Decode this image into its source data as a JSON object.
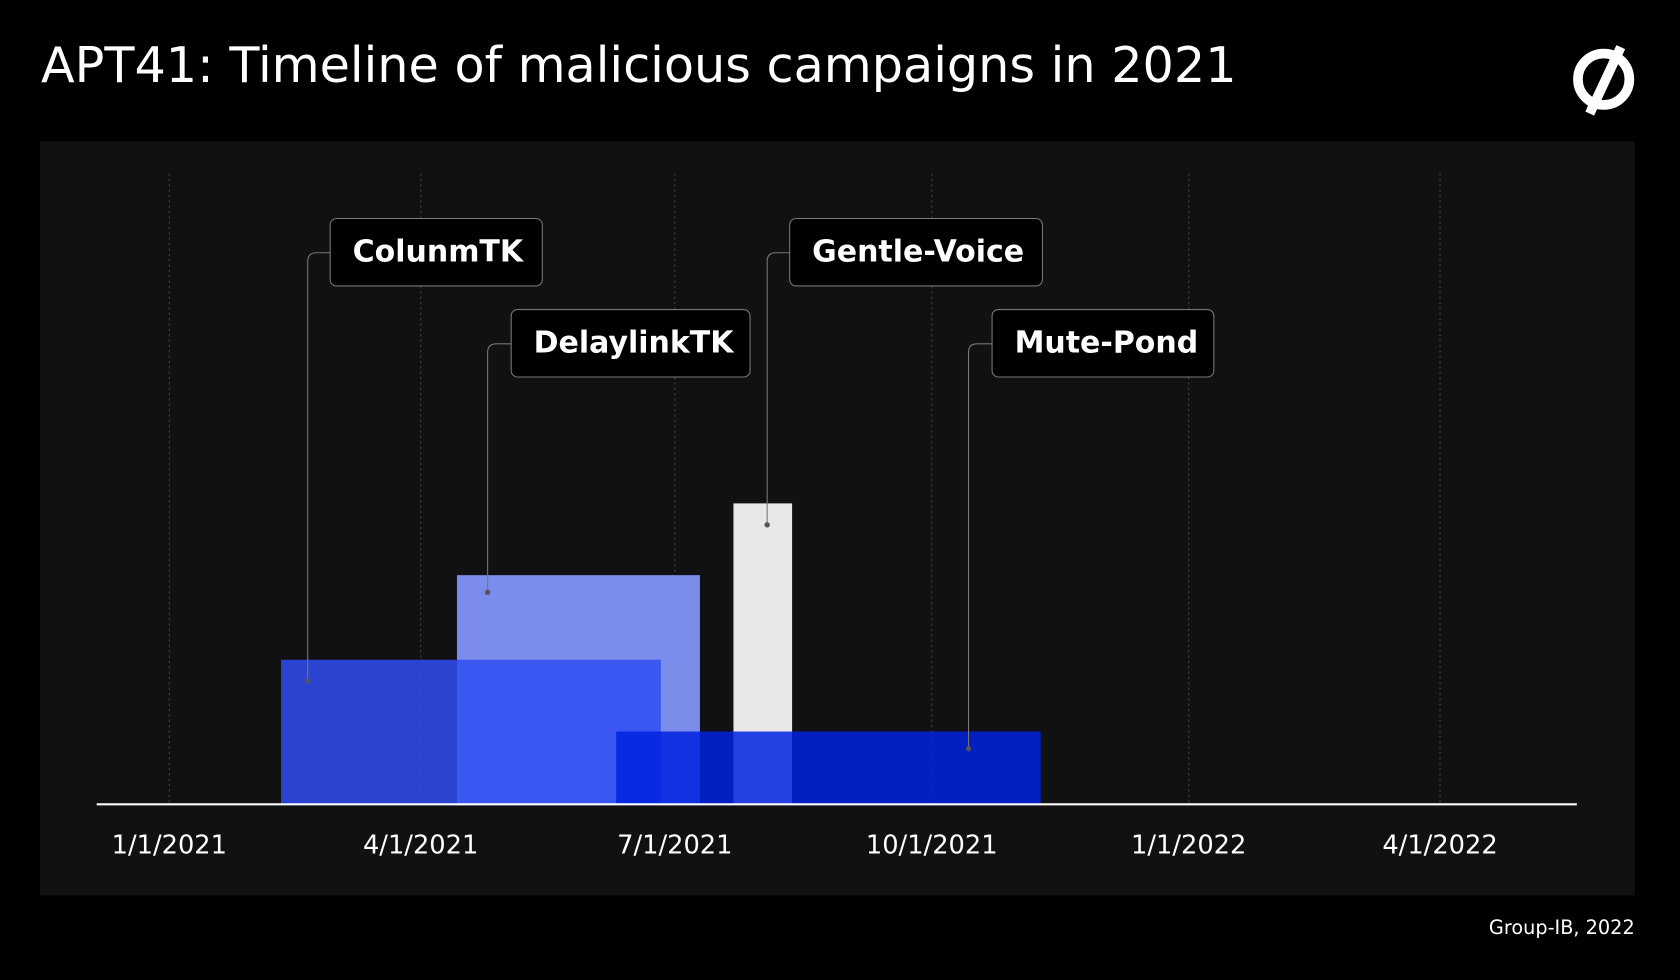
{
  "chart_data": {
    "type": "gantt",
    "title": "APT41: Timeline of malicious campaigns in 2021",
    "source": "Group-IB, 2022",
    "xlim": [
      "2020-12-06",
      "2022-05-20"
    ],
    "xticks": [
      {
        "value": "2021-01-01",
        "label": "1/1/2021"
      },
      {
        "value": "2021-04-01",
        "label": "4/1/2021"
      },
      {
        "value": "2021-07-01",
        "label": "7/1/2021"
      },
      {
        "value": "2021-10-01",
        "label": "10/1/2021"
      },
      {
        "value": "2022-01-01",
        "label": "1/1/2022"
      },
      {
        "value": "2022-04-01",
        "label": "4/1/2022"
      }
    ],
    "grid": true,
    "series": [
      {
        "name": "DelaylinkTK",
        "color": "#7b8ceb",
        "start": "2021-04-14",
        "end": "2021-07-10"
      },
      {
        "name": "ColunmTK",
        "color": "#2f4df2",
        "start": "2021-02-10",
        "end": "2021-06-26"
      },
      {
        "name": "Gentle-Voice",
        "color": "#e8e8e8",
        "start": "2021-07-22",
        "end": "2021-08-12"
      },
      {
        "name": "Mute-Pond",
        "color": "#0022e0",
        "start": "2021-06-10",
        "end": "2021-11-09"
      }
    ]
  }
}
